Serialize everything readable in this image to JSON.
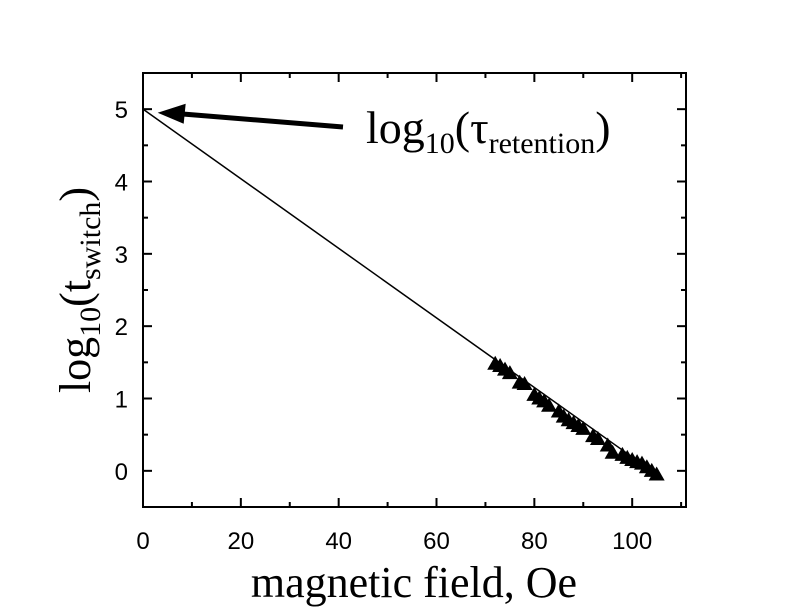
{
  "chart_data": {
    "type": "scatter",
    "title": "",
    "xlabel": "magnetic field, Oe",
    "ylabel": {
      "base": "log",
      "sub1": "10",
      "open": "(t",
      "sub2": "switch",
      "close": ")"
    },
    "xlim": [
      0,
      111
    ],
    "ylim": [
      -0.5,
      5.5
    ],
    "xticks": [
      0,
      20,
      40,
      60,
      80,
      100
    ],
    "yticks": [
      0,
      1,
      2,
      3,
      4,
      5
    ],
    "xtick_labels": [
      "0",
      "20",
      "40",
      "60",
      "80",
      "100"
    ],
    "ytick_labels": [
      "0",
      "1",
      "2",
      "3",
      "4",
      "5"
    ],
    "grid": false,
    "fit_line": {
      "x": [
        0,
        105
      ],
      "y": [
        5.0,
        -0.05
      ]
    },
    "series": [
      {
        "marker": "triangle-up",
        "x": [
          72,
          73,
          74,
          75,
          77,
          78,
          80,
          81,
          82,
          83,
          85,
          86,
          87,
          88,
          89,
          90,
          92,
          93,
          95,
          96,
          98,
          99,
          100,
          101,
          102,
          103,
          104,
          105
        ],
        "y": [
          1.48,
          1.45,
          1.4,
          1.35,
          1.22,
          1.2,
          1.05,
          1.0,
          0.96,
          0.9,
          0.82,
          0.75,
          0.7,
          0.66,
          0.62,
          0.58,
          0.48,
          0.44,
          0.35,
          0.25,
          0.22,
          0.18,
          0.15,
          0.12,
          0.1,
          0.05,
          0.0,
          -0.05
        ]
      }
    ],
    "annotation": {
      "base": "log",
      "sub1": "10",
      "open": "(τ",
      "sub2": "retention",
      "close": ")",
      "arrow_to": [
        3,
        4.95
      ]
    }
  }
}
